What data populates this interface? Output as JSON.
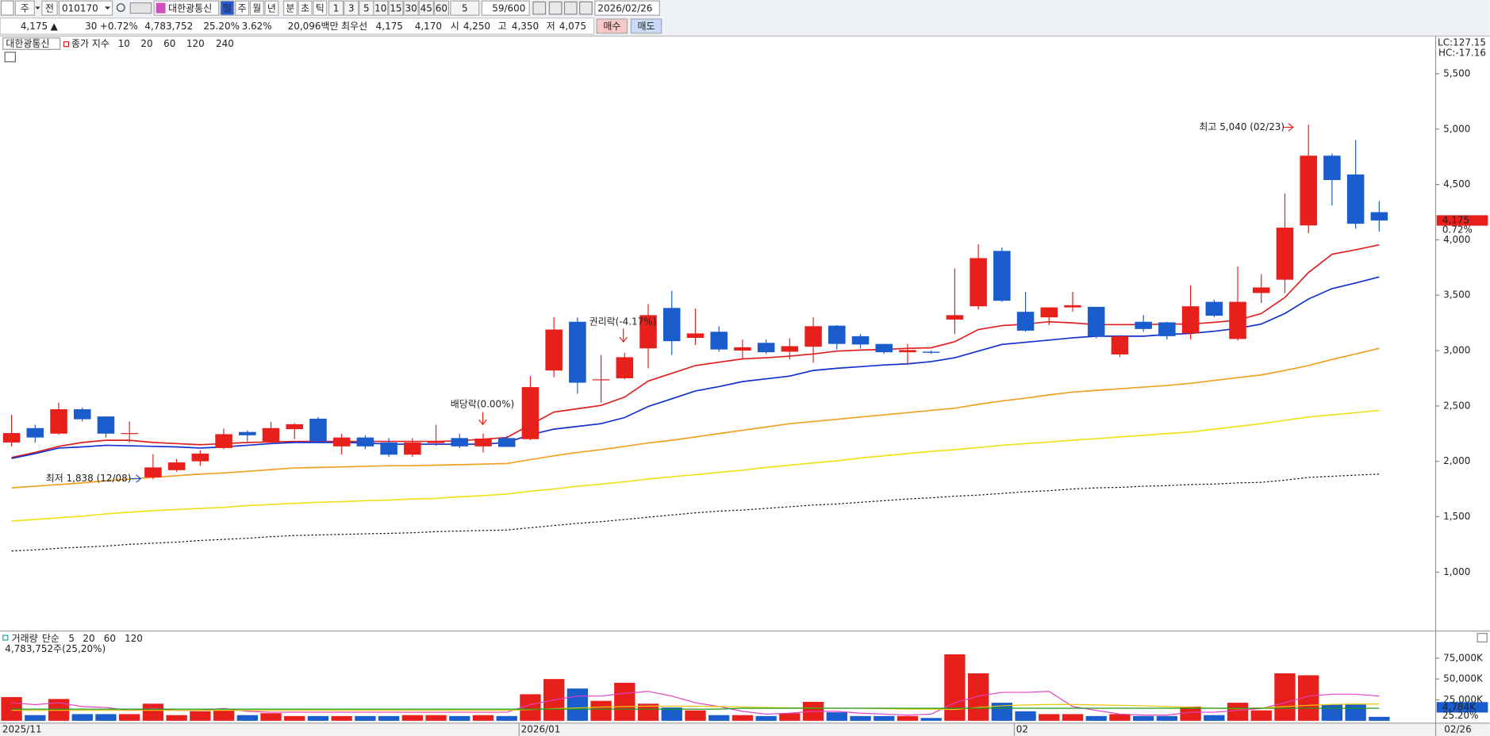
{
  "toolbar": {
    "market": "주",
    "scope": "전",
    "code": "010170",
    "stock": "대한광통신",
    "periods": [
      "일",
      "주",
      "월",
      "년",
      "분",
      "초",
      "틱"
    ],
    "intervals": [
      "1",
      "3",
      "5",
      "10",
      "15",
      "30",
      "45",
      "60"
    ],
    "interval_select": "5",
    "count": "59/600",
    "date": "2026/02/26"
  },
  "quote": {
    "price": "4,175",
    "arrow": "▲",
    "change": "30",
    "change_pct": "+0.72%",
    "volume": "4,783,752",
    "volume_pct": "25.20%",
    "turnover_pct": "3.62%",
    "amount": "20,096백만",
    "best_label": "최우선",
    "best_ask": "4,175",
    "best_bid": "4,170",
    "open_label": "시",
    "open": "4,250",
    "high_label": "고",
    "high": "4,350",
    "low_label": "저",
    "low": "4,075",
    "buy": "매수",
    "sell": "매도"
  },
  "chart_data": [
    {
      "type": "candlestick",
      "legend_stock": "대한광통신",
      "legend_label": "종가 지수",
      "lc": "LC:127.15",
      "hc": "HC:-17.16",
      "up_color": "#e8201c",
      "down_color": "#1a5ccc",
      "grid": false,
      "categories": [
        "2025/11",
        null,
        null,
        null,
        null,
        null,
        null,
        null,
        null,
        null,
        null,
        null,
        null,
        null,
        null,
        null,
        null,
        null,
        null,
        null,
        null,
        null,
        "2026/01",
        null,
        null,
        null,
        null,
        null,
        null,
        null,
        null,
        null,
        null,
        null,
        null,
        null,
        null,
        null,
        null,
        null,
        null,
        null,
        null,
        "02",
        null,
        null,
        null,
        null,
        null,
        null,
        null,
        null,
        null,
        null,
        null,
        null,
        null,
        null,
        null
      ],
      "last_date": "02/26",
      "open": [
        2170,
        2300,
        2250,
        2470,
        2405,
        2250,
        1855,
        1920,
        2000,
        2120,
        2265,
        2180,
        2290,
        2385,
        2135,
        2215,
        2170,
        2060,
        2165,
        2210,
        2135,
        2210,
        2200,
        2820,
        3260,
        2735,
        2750,
        3020,
        3385,
        3115,
        3170,
        3000,
        3070,
        2990,
        3035,
        3225,
        3130,
        3060,
        2985,
        2990,
        3280,
        3400,
        3900,
        3350,
        3300,
        3390,
        3395,
        2965,
        3260,
        3255,
        3155,
        3440,
        3105,
        3520,
        3640,
        4130,
        4760,
        4590,
        4250
      ],
      "high": [
        2420,
        2330,
        2530,
        2485,
        2405,
        2360,
        2065,
        2020,
        2100,
        2295,
        2280,
        2355,
        2345,
        2400,
        2250,
        2235,
        2210,
        2210,
        2330,
        2250,
        2250,
        2230,
        2770,
        3300,
        3300,
        2960,
        2980,
        3420,
        3540,
        3380,
        3220,
        3100,
        3100,
        3110,
        3300,
        3230,
        3150,
        3060,
        3060,
        3000,
        3740,
        3960,
        3930,
        3530,
        3390,
        3530,
        3395,
        3140,
        3320,
        3260,
        3590,
        3460,
        3760,
        3690,
        4420,
        5040,
        4780,
        4900,
        4350
      ],
      "low": [
        2135,
        2170,
        2240,
        2360,
        2215,
        2170,
        1838,
        1905,
        1960,
        2110,
        2180,
        2160,
        2200,
        2170,
        2060,
        2110,
        2040,
        2040,
        2140,
        2120,
        2080,
        2130,
        2190,
        2760,
        2610,
        2530,
        2740,
        2840,
        2960,
        3050,
        2990,
        2930,
        2970,
        2920,
        2890,
        3010,
        3020,
        2970,
        2870,
        2970,
        3150,
        3370,
        3440,
        3170,
        3230,
        3350,
        3110,
        2940,
        3170,
        3100,
        3100,
        3300,
        3090,
        3430,
        3520,
        4060,
        4310,
        4100,
        4075
      ],
      "close": [
        2255,
        2215,
        2470,
        2380,
        2250,
        2255,
        1945,
        1990,
        2070,
        2245,
        2235,
        2300,
        2335,
        2180,
        2215,
        2135,
        2060,
        2170,
        2180,
        2135,
        2205,
        2130,
        2670,
        3190,
        2710,
        2740,
        2940,
        3320,
        3085,
        3155,
        3010,
        3030,
        2985,
        3040,
        3220,
        3060,
        3055,
        2985,
        3005,
        2980,
        3320,
        3835,
        3450,
        3180,
        3390,
        3410,
        3130,
        3130,
        3195,
        3130,
        3400,
        3315,
        3440,
        3570,
        4110,
        4760,
        4540,
        4145,
        4175
      ],
      "series": [
        {
          "name": "10",
          "color": "#e02020",
          "values": [
            2035,
            2080,
            2135,
            2170,
            2190,
            2190,
            2170,
            2160,
            2150,
            2160,
            2170,
            2175,
            2180,
            2180,
            2180,
            2180,
            2180,
            2180,
            2180,
            2185,
            2200,
            2215,
            2330,
            2445,
            2475,
            2505,
            2580,
            2725,
            2795,
            2865,
            2895,
            2925,
            2935,
            2950,
            2970,
            2995,
            3005,
            3010,
            3020,
            3025,
            3080,
            3190,
            3225,
            3240,
            3260,
            3250,
            3235,
            3235,
            3235,
            3240,
            3240,
            3255,
            3275,
            3335,
            3480,
            3705,
            3870,
            3910,
            3955
          ]
        },
        {
          "name": "20",
          "color": "#1030d0",
          "values": [
            2025,
            2070,
            2120,
            2130,
            2145,
            2140,
            2135,
            2130,
            2120,
            2130,
            2145,
            2160,
            2170,
            2170,
            2170,
            2165,
            2155,
            2155,
            2155,
            2155,
            2155,
            2170,
            2240,
            2290,
            2315,
            2340,
            2395,
            2495,
            2565,
            2635,
            2675,
            2720,
            2745,
            2770,
            2820,
            2840,
            2855,
            2870,
            2880,
            2900,
            2935,
            2995,
            3055,
            3075,
            3095,
            3115,
            3130,
            3130,
            3130,
            3145,
            3155,
            3175,
            3200,
            3240,
            3335,
            3465,
            3560,
            3610,
            3665
          ]
        },
        {
          "name": "60",
          "color": "#f0a020",
          "values": [
            1760,
            1775,
            1790,
            1805,
            1825,
            1840,
            1855,
            1870,
            1885,
            1895,
            1910,
            1925,
            1940,
            1945,
            1950,
            1955,
            1960,
            1960,
            1965,
            1970,
            1975,
            1980,
            2015,
            2050,
            2080,
            2105,
            2135,
            2165,
            2190,
            2220,
            2250,
            2280,
            2310,
            2340,
            2360,
            2380,
            2400,
            2420,
            2440,
            2460,
            2480,
            2515,
            2545,
            2570,
            2600,
            2625,
            2640,
            2655,
            2670,
            2685,
            2705,
            2730,
            2755,
            2780,
            2820,
            2865,
            2920,
            2970,
            3020
          ]
        },
        {
          "name": "120",
          "color": "#eee21a",
          "values": [
            1460,
            1475,
            1490,
            1505,
            1525,
            1540,
            1555,
            1565,
            1575,
            1585,
            1600,
            1610,
            1620,
            1630,
            1635,
            1645,
            1650,
            1660,
            1665,
            1680,
            1690,
            1705,
            1730,
            1750,
            1775,
            1795,
            1815,
            1840,
            1860,
            1880,
            1900,
            1920,
            1945,
            1965,
            1985,
            2005,
            2030,
            2050,
            2070,
            2090,
            2105,
            2125,
            2145,
            2160,
            2175,
            2190,
            2205,
            2220,
            2235,
            2250,
            2265,
            2290,
            2315,
            2340,
            2370,
            2400,
            2420,
            2440,
            2460
          ]
        },
        {
          "name": "240",
          "color": "#111111",
          "dash": true,
          "values": [
            1190,
            1200,
            1215,
            1225,
            1235,
            1250,
            1260,
            1270,
            1285,
            1295,
            1305,
            1320,
            1330,
            1335,
            1340,
            1345,
            1350,
            1355,
            1365,
            1370,
            1375,
            1380,
            1400,
            1420,
            1440,
            1455,
            1475,
            1495,
            1515,
            1535,
            1550,
            1560,
            1575,
            1590,
            1605,
            1615,
            1630,
            1645,
            1660,
            1670,
            1685,
            1695,
            1710,
            1725,
            1735,
            1750,
            1760,
            1765,
            1775,
            1780,
            1790,
            1795,
            1805,
            1810,
            1830,
            1855,
            1865,
            1875,
            1885
          ]
        }
      ],
      "ylim": [
        480,
        5840
      ],
      "yticks": [
        {
          "value": 1000,
          "label": "1,000"
        },
        {
          "value": 1500,
          "label": "1,500"
        },
        {
          "value": 2000,
          "label": "2,000"
        },
        {
          "value": 2500,
          "label": "2,500"
        },
        {
          "value": 3000,
          "label": "3,000"
        },
        {
          "value": 3500,
          "label": "3,500"
        },
        {
          "value": 4000,
          "label": "4,000"
        },
        {
          "value": 4500,
          "label": "4,500"
        },
        {
          "value": 5000,
          "label": "5,000"
        },
        {
          "value": 5500,
          "label": "5,500"
        }
      ],
      "current": {
        "value": 4175,
        "label": "4,175"
      },
      "current_change": "0.72%",
      "annotations": {
        "high": "최고 5,040 (02/23)",
        "low": "최저 1,838 (12/08)",
        "dividend": "배당락(0.00%)",
        "rights": "권리락(-4.17%)"
      }
    },
    {
      "type": "bar",
      "legend_label": "거래량",
      "legend_color": "#1aa0a0",
      "ma_label": "단순",
      "ma_color": "#e040c0",
      "summary": "4,783,752주(25,20%)",
      "values": [
        28400,
        6800,
        26100,
        8000,
        8000,
        8000,
        20500,
        6800,
        11400,
        12500,
        6800,
        9100,
        5700,
        5700,
        5700,
        5700,
        5700,
        6800,
        6800,
        5700,
        6800,
        5700,
        31800,
        50000,
        38600,
        23900,
        45500,
        20500,
        15900,
        12500,
        6800,
        6800,
        5700,
        9100,
        22700,
        10200,
        5700,
        5700,
        5700,
        3400,
        79500,
        56800,
        21600,
        11400,
        8000,
        8000,
        5700,
        8000,
        5700,
        5700,
        17000,
        6800,
        21600,
        12500,
        56800,
        54500,
        19300,
        19300,
        4783.752
      ],
      "series": [
        {
          "name": "5",
          "color": "#e040c0",
          "values": [
            21600,
            19300,
            21600,
            17000,
            15900,
            12500,
            14800,
            12500,
            12500,
            14800,
            11400,
            10200,
            10200,
            10200,
            10200,
            10200,
            10200,
            10200,
            10200,
            10200,
            10200,
            10200,
            19300,
            25000,
            29500,
            29500,
            33000,
            35200,
            29500,
            21600,
            17000,
            11400,
            8000,
            9100,
            11400,
            11400,
            9100,
            8000,
            6800,
            8000,
            21600,
            29500,
            34100,
            34100,
            35200,
            17000,
            12500,
            8000,
            6800,
            6800,
            10200,
            10200,
            12500,
            14800,
            21600,
            29500,
            31800,
            31800,
            29500
          ]
        },
        {
          "name": "20",
          "color": "#e6c800",
          "values": [
            12500,
            12500,
            12500,
            12500,
            12500,
            12500,
            12500,
            12500,
            12500,
            12500,
            12500,
            12500,
            12500,
            12500,
            12500,
            12500,
            12500,
            12500,
            12500,
            12500,
            12500,
            12500,
            13500,
            14500,
            15500,
            16500,
            17000,
            17500,
            17500,
            17500,
            17000,
            16500,
            16000,
            15500,
            15500,
            15000,
            15000,
            14500,
            14000,
            14000,
            13500,
            16000,
            18000,
            19000,
            19500,
            19500,
            19000,
            18500,
            18000,
            17000,
            16000,
            15000,
            14500,
            15500,
            17000,
            18500,
            19500,
            20000,
            20000
          ]
        },
        {
          "name": "60",
          "color": "#1a9a1a",
          "values": [
            14000,
            14000,
            14000,
            14000,
            14000,
            14000,
            14000,
            14000,
            14000,
            14000,
            14000,
            14000,
            14000,
            14000,
            14000,
            14000,
            14000,
            14000,
            14000,
            14000,
            14000,
            14000,
            14000,
            14000,
            14000,
            14000,
            14000,
            14000,
            14000,
            14000,
            14000,
            15000,
            15000,
            15000,
            15000,
            15000,
            15000,
            15000,
            15000,
            15000,
            15000,
            15000,
            15000,
            15000,
            15000,
            15000,
            15000,
            15000,
            15000,
            15000,
            15000,
            15000,
            15000,
            15000,
            15000,
            15000,
            15000,
            15000,
            15000
          ]
        },
        {
          "name": "120",
          "color": "#999999"
        }
      ],
      "ylim": [
        0,
        105700
      ],
      "yticks": [
        {
          "value": 25000,
          "label": "25,000K"
        },
        {
          "value": 50000,
          "label": "50,000K"
        },
        {
          "value": 75000,
          "label": "75,000K"
        }
      ],
      "current": {
        "value": 4783.752,
        "label": "4,784K"
      },
      "current_pct": "25.20%"
    }
  ]
}
